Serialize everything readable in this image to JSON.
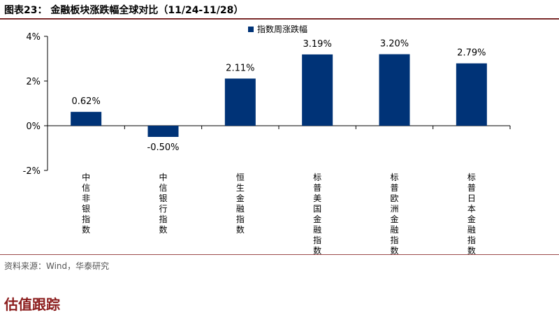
{
  "figure_title": "图表23： 金融板块涨跌幅全球对比（11/24-11/28）",
  "source": "资料来源：Wind，华泰研究",
  "section_heading": "估值跟踪",
  "colors": {
    "bar": "#003377",
    "rule": "#7a2a2a",
    "section": "#8b1c1c"
  },
  "chart_data": {
    "type": "bar",
    "title": "",
    "xlabel": "",
    "ylabel": "",
    "ylim": [
      -2,
      4
    ],
    "yticks": [
      -2,
      0,
      2,
      4
    ],
    "ytick_labels": [
      "-2%",
      "0%",
      "2%",
      "4%"
    ],
    "legend_position": "top-right",
    "categories": [
      "中信非银指数",
      "中信银行指数",
      "恒生金融指数",
      "标普美国金融指数",
      "标普欧洲金融指数",
      "标普日本金融指数"
    ],
    "series": [
      {
        "name": "指数周涨跌幅",
        "values": [
          0.62,
          -0.5,
          2.11,
          3.19,
          3.2,
          2.79
        ],
        "labels": [
          "0.62%",
          "-0.50%",
          "2.11%",
          "3.19%",
          "3.20%",
          "2.79%"
        ]
      }
    ]
  }
}
